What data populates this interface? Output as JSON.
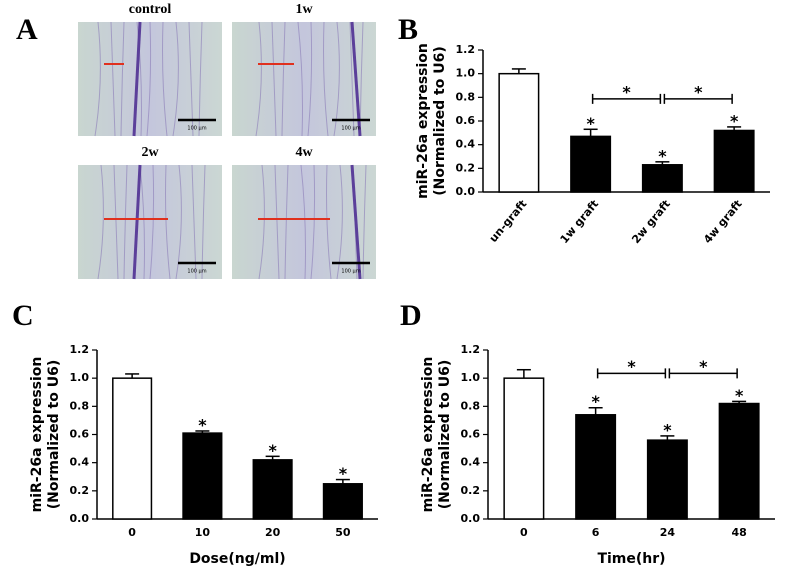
{
  "panel_labels": [
    "A",
    "B",
    "C",
    "D"
  ],
  "micrographs": [
    {
      "label": "control",
      "scale_bar": "100 μm"
    },
    {
      "label": "1w",
      "scale_bar": "100 μm"
    },
    {
      "label": "2w",
      "scale_bar": "100 μm"
    },
    {
      "label": "4w",
      "scale_bar": "100 μm"
    }
  ],
  "chart_data": [
    {
      "type": "bar",
      "ylabel": [
        "miR-26a expression",
        "(Normalized to U6)"
      ],
      "categories": [
        "un-graft",
        "1w graft",
        "2w graft",
        "4w graft"
      ],
      "values": [
        1.0,
        0.47,
        0.23,
        0.52
      ],
      "errors": [
        0.04,
        0.06,
        0.025,
        0.03
      ],
      "colors": [
        "#ffffff",
        "#000000",
        "#000000",
        "#000000"
      ],
      "bar_labels": [
        null,
        "*",
        "*",
        "*"
      ],
      "brackets": [
        {
          "between": [
            "1w graft",
            "2w graft"
          ],
          "label": "*"
        },
        {
          "between": [
            "2w graft",
            "4w graft"
          ],
          "label": "*"
        }
      ],
      "ylim": [
        0,
        1.2
      ],
      "yticks": [
        {
          "value": 0,
          "label": "0.0"
        },
        0.2,
        0.4,
        0.6,
        0.8,
        {
          "value": 1,
          "label": "1.0"
        },
        1.2
      ]
    },
    {
      "type": "bar",
      "ylabel": [
        "miR-26a expression",
        "(Normalized to U6)"
      ],
      "xlabel": "Dose(ng/ml)",
      "categories": [
        "0",
        "10",
        "20",
        "50"
      ],
      "values": [
        1.0,
        0.61,
        0.42,
        0.25
      ],
      "errors": [
        0.03,
        0.015,
        0.025,
        0.03
      ],
      "colors": [
        "#ffffff",
        "#000000",
        "#000000",
        "#000000"
      ],
      "bar_labels": [
        null,
        "*",
        "*",
        "*"
      ],
      "brackets": [],
      "ylim": [
        0,
        1.2
      ],
      "yticks": [
        {
          "value": 0,
          "label": "0.0"
        },
        0.2,
        0.4,
        0.6,
        0.8,
        {
          "value": 1,
          "label": "1.0"
        },
        1.2
      ]
    },
    {
      "type": "bar",
      "ylabel": [
        "miR-26a expression",
        "(Normalized to U6)"
      ],
      "xlabel": "Time(hr)",
      "categories": [
        "0",
        "6",
        "24",
        "48"
      ],
      "values": [
        1.0,
        0.74,
        0.56,
        0.82
      ],
      "errors": [
        0.06,
        0.05,
        0.03,
        0.015
      ],
      "colors": [
        "#ffffff",
        "#000000",
        "#000000",
        "#000000"
      ],
      "bar_labels": [
        null,
        "*",
        "*",
        "*"
      ],
      "brackets": [
        {
          "between": [
            "6",
            "24"
          ],
          "label": "*"
        },
        {
          "between": [
            "24",
            "48"
          ],
          "label": "*"
        }
      ],
      "ylim": [
        0,
        1.2
      ],
      "yticks": [
        {
          "value": 0,
          "label": "0.0"
        },
        0.2,
        0.4,
        0.6,
        0.8,
        {
          "value": 1,
          "label": "1.0"
        },
        1.2
      ]
    }
  ]
}
